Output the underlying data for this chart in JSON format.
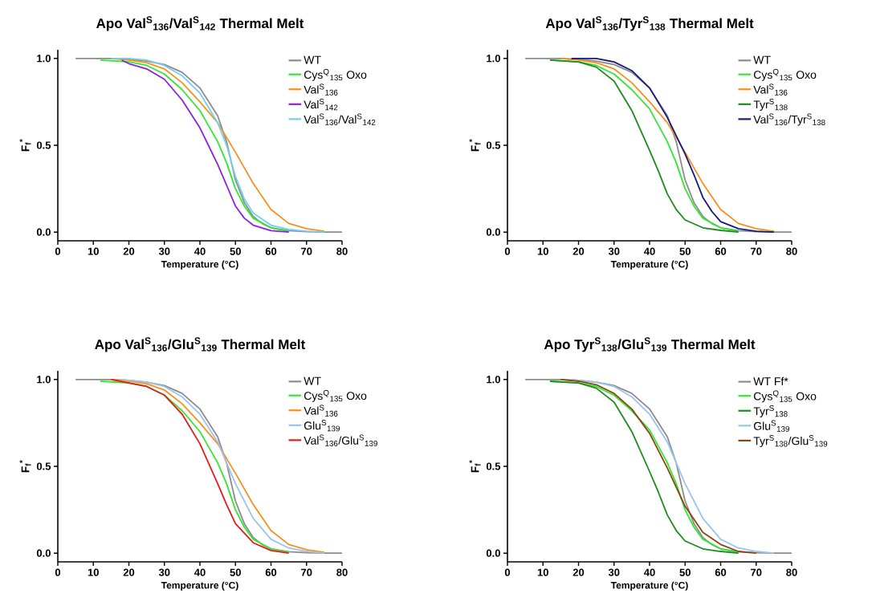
{
  "chart_data": [
    {
      "type": "line",
      "title": "Apo Val$^{S}$$_{136}$/Val$^{S}$$_{142}$ Thermal Melt",
      "xlabel": "Temperature (°C)",
      "ylabel": "F$_{f}$$^{*}$",
      "xlim": [
        0,
        80
      ],
      "ylim": [
        -0.05,
        1.05
      ],
      "xticks": [
        0,
        10,
        20,
        30,
        40,
        50,
        60,
        70,
        80
      ],
      "yticks": [
        {
          "value": 0,
          "label": "0.0"
        },
        {
          "value": 0.5,
          "label": "0.5"
        },
        {
          "value": 1,
          "label": "1.0"
        }
      ],
      "legend": "top right",
      "series": [
        {
          "name": "WT",
          "color": "#8c8c8c",
          "x": [
            5,
            10,
            15,
            20,
            25,
            30,
            35,
            40,
            45,
            47.5,
            50,
            52.5,
            55,
            57.5,
            60,
            65,
            70,
            75,
            80
          ],
          "values": [
            1,
            1,
            1,
            0.995,
            0.985,
            0.965,
            0.92,
            0.83,
            0.67,
            0.52,
            0.3,
            0.17,
            0.09,
            0.05,
            0.025,
            0.008,
            0.003,
            0,
            0
          ]
        },
        {
          "name": "Cys$^{Q}$$_{135}$ Oxo",
          "color": "#33e633",
          "x": [
            12,
            20,
            25,
            30,
            35,
            40,
            45,
            47.5,
            50,
            52.5,
            55,
            60,
            65
          ],
          "values": [
            0.99,
            0.98,
            0.96,
            0.91,
            0.82,
            0.7,
            0.52,
            0.4,
            0.25,
            0.15,
            0.08,
            0.025,
            0.005
          ]
        },
        {
          "name": "Val$^{S}$$_{136}$",
          "color": "#f7901e",
          "x": [
            15,
            20,
            25,
            30,
            35,
            40,
            45,
            50,
            55,
            60,
            65,
            70,
            75
          ],
          "values": [
            1,
            0.99,
            0.975,
            0.94,
            0.86,
            0.75,
            0.63,
            0.46,
            0.28,
            0.13,
            0.05,
            0.02,
            0.005
          ]
        },
        {
          "name": "Val$^{S}$$_{142}$",
          "color": "#8c1fe0",
          "x": [
            18,
            20,
            25,
            30,
            35,
            40,
            45,
            47.5,
            50,
            52.5,
            55,
            60,
            65
          ],
          "values": [
            0.99,
            0.97,
            0.94,
            0.88,
            0.76,
            0.6,
            0.39,
            0.27,
            0.15,
            0.08,
            0.04,
            0.008,
            0
          ]
        },
        {
          "name": "Val$^{S}$$_{136}$/Val$^{S}$$_{142}$",
          "color": "#6ecff0",
          "x": [
            15,
            20,
            25,
            30,
            35,
            40,
            45,
            47.5,
            50,
            52.5,
            55,
            60,
            65,
            70,
            75
          ],
          "values": [
            1,
            1,
            0.99,
            0.96,
            0.9,
            0.8,
            0.63,
            0.5,
            0.32,
            0.19,
            0.11,
            0.04,
            0.015,
            0.005,
            0
          ]
        }
      ]
    },
    {
      "type": "line",
      "title": "Apo Val$^{S}$$_{136}$/Tyr$^{S}$$_{138}$ Thermal Melt",
      "xlabel": "Temperature (°C)",
      "ylabel": "F$_{f}$$^{*}$",
      "xlim": [
        0,
        80
      ],
      "ylim": [
        -0.05,
        1.05
      ],
      "xticks": [
        0,
        10,
        20,
        30,
        40,
        50,
        60,
        70,
        80
      ],
      "yticks": [
        {
          "value": 0,
          "label": "0.0"
        },
        {
          "value": 0.5,
          "label": "0.5"
        },
        {
          "value": 1,
          "label": "1.0"
        }
      ],
      "legend": "top right",
      "series": [
        {
          "name": "WT",
          "color": "#8c8c8c",
          "x": [
            5,
            10,
            15,
            20,
            25,
            30,
            35,
            40,
            45,
            47.5,
            50,
            52.5,
            55,
            57.5,
            60,
            65,
            70,
            75,
            80
          ],
          "values": [
            1,
            1,
            1,
            0.995,
            0.985,
            0.965,
            0.92,
            0.83,
            0.67,
            0.52,
            0.3,
            0.17,
            0.09,
            0.05,
            0.025,
            0.008,
            0.003,
            0,
            0
          ]
        },
        {
          "name": "Cys$^{Q}$$_{135}$ Oxo",
          "color": "#33e633",
          "x": [
            12,
            20,
            25,
            30,
            35,
            40,
            45,
            47.5,
            50,
            52.5,
            55,
            60,
            65
          ],
          "values": [
            0.99,
            0.98,
            0.96,
            0.91,
            0.82,
            0.71,
            0.52,
            0.4,
            0.25,
            0.15,
            0.08,
            0.025,
            0.005
          ]
        },
        {
          "name": "Val$^{S}$$_{136}$",
          "color": "#f7901e",
          "x": [
            15,
            20,
            25,
            30,
            35,
            40,
            45,
            50,
            55,
            60,
            65,
            70,
            75
          ],
          "values": [
            1,
            0.99,
            0.975,
            0.94,
            0.86,
            0.75,
            0.63,
            0.46,
            0.28,
            0.13,
            0.05,
            0.02,
            0.005
          ]
        },
        {
          "name": "Tyr$^{S}$$_{138}$",
          "color": "#1f8a1f",
          "x": [
            12,
            20,
            25,
            30,
            35,
            40,
            42.5,
            45,
            47.5,
            50,
            55,
            60,
            65
          ],
          "values": [
            0.99,
            0.98,
            0.95,
            0.87,
            0.7,
            0.47,
            0.35,
            0.22,
            0.13,
            0.07,
            0.025,
            0.01,
            0
          ]
        },
        {
          "name": "Val$^{S}$$_{136}$/Tyr$^{S}$$_{138}$",
          "color": "#141a80",
          "x": [
            18,
            25,
            30,
            35,
            40,
            45,
            50,
            52.5,
            55,
            57.5,
            60,
            65,
            70,
            75
          ],
          "values": [
            1,
            1,
            0.98,
            0.93,
            0.83,
            0.66,
            0.45,
            0.33,
            0.2,
            0.12,
            0.06,
            0.02,
            0.005,
            0
          ]
        }
      ]
    },
    {
      "type": "line",
      "title": "Apo Val$^{S}$$_{136}$/Glu$^{S}$$_{139}$ Thermal Melt",
      "xlabel": "Temperature (°C)",
      "ylabel": "F$_{f}$$^{*}$",
      "xlim": [
        0,
        80
      ],
      "ylim": [
        -0.05,
        1.05
      ],
      "xticks": [
        0,
        10,
        20,
        30,
        40,
        50,
        60,
        70,
        80
      ],
      "yticks": [
        {
          "value": 0,
          "label": "0.0"
        },
        {
          "value": 0.5,
          "label": "0.5"
        },
        {
          "value": 1,
          "label": "1.0"
        }
      ],
      "legend": "top right",
      "series": [
        {
          "name": "WT",
          "color": "#8c8c8c",
          "x": [
            5,
            10,
            15,
            20,
            25,
            30,
            35,
            40,
            45,
            47.5,
            50,
            52.5,
            55,
            57.5,
            60,
            65,
            70,
            75,
            80
          ],
          "values": [
            1,
            1,
            1,
            0.995,
            0.985,
            0.965,
            0.92,
            0.83,
            0.67,
            0.52,
            0.3,
            0.17,
            0.09,
            0.05,
            0.025,
            0.008,
            0.003,
            0,
            0
          ]
        },
        {
          "name": "Cys$^{Q}$$_{135}$ Oxo",
          "color": "#33e633",
          "x": [
            12,
            20,
            25,
            30,
            35,
            40,
            45,
            47.5,
            50,
            52.5,
            55,
            60,
            65
          ],
          "values": [
            0.99,
            0.98,
            0.96,
            0.91,
            0.82,
            0.7,
            0.52,
            0.4,
            0.25,
            0.15,
            0.08,
            0.025,
            0.005
          ]
        },
        {
          "name": "Val$^{S}$$_{136}$",
          "color": "#f7901e",
          "x": [
            15,
            20,
            25,
            30,
            35,
            40,
            45,
            50,
            55,
            60,
            65,
            70,
            75
          ],
          "values": [
            1,
            0.99,
            0.975,
            0.94,
            0.86,
            0.75,
            0.63,
            0.46,
            0.28,
            0.13,
            0.05,
            0.02,
            0.005
          ]
        },
        {
          "name": "Glu$^{S}$$_{139}$",
          "color": "#9cc3f0",
          "x": [
            18,
            25,
            30,
            35,
            40,
            45,
            50,
            52.5,
            55,
            60,
            65,
            70,
            75
          ],
          "values": [
            1,
            0.985,
            0.96,
            0.9,
            0.8,
            0.64,
            0.4,
            0.3,
            0.2,
            0.08,
            0.03,
            0.01,
            0
          ]
        },
        {
          "name": "Val$^{S}$$_{136}$/Glu$^{S}$$_{139}$",
          "color": "#e61919",
          "x": [
            15,
            20,
            25,
            30,
            35,
            40,
            45,
            47.5,
            50,
            55,
            60,
            65
          ],
          "values": [
            1,
            0.98,
            0.96,
            0.91,
            0.8,
            0.63,
            0.4,
            0.28,
            0.17,
            0.06,
            0.015,
            0
          ]
        }
      ]
    },
    {
      "type": "line",
      "title": "Apo Tyr$^{S}$$_{138}$/Glu$^{S}$$_{139}$ Thermal Melt",
      "xlabel": "Temperature (°C)",
      "ylabel": "F$_{f}$$^{*}$",
      "xlim": [
        0,
        80
      ],
      "ylim": [
        -0.05,
        1.05
      ],
      "xticks": [
        0,
        10,
        20,
        30,
        40,
        50,
        60,
        70,
        80
      ],
      "yticks": [
        {
          "value": 0,
          "label": "0.0"
        },
        {
          "value": 0.5,
          "label": "0.5"
        },
        {
          "value": 1,
          "label": "1.0"
        }
      ],
      "legend": "top right",
      "series": [
        {
          "name": "WT Ff*",
          "color": "#8c8c8c",
          "x": [
            5,
            10,
            15,
            20,
            25,
            30,
            35,
            40,
            45,
            47.5,
            50,
            52.5,
            55,
            57.5,
            60,
            65,
            70,
            75,
            80
          ],
          "values": [
            1,
            1,
            1,
            0.995,
            0.985,
            0.965,
            0.92,
            0.83,
            0.67,
            0.52,
            0.3,
            0.17,
            0.09,
            0.05,
            0.025,
            0.008,
            0.003,
            0,
            0
          ]
        },
        {
          "name": "Cys$^{Q}$$_{135}$ Oxo",
          "color": "#33e633",
          "x": [
            12,
            20,
            25,
            30,
            35,
            40,
            45,
            47.5,
            50,
            52.5,
            55,
            60,
            65
          ],
          "values": [
            0.99,
            0.98,
            0.96,
            0.91,
            0.82,
            0.71,
            0.52,
            0.4,
            0.25,
            0.15,
            0.08,
            0.025,
            0.005
          ]
        },
        {
          "name": "Tyr$^{S}$$_{138}$",
          "color": "#1f8a1f",
          "x": [
            12,
            20,
            25,
            30,
            35,
            40,
            42.5,
            45,
            47.5,
            50,
            55,
            60,
            65
          ],
          "values": [
            0.99,
            0.98,
            0.95,
            0.87,
            0.7,
            0.47,
            0.35,
            0.22,
            0.13,
            0.07,
            0.025,
            0.01,
            0
          ]
        },
        {
          "name": "Glu$^{S}$$_{139}$",
          "color": "#9cc3f0",
          "x": [
            18,
            25,
            30,
            35,
            40,
            45,
            50,
            52.5,
            55,
            60,
            65,
            70,
            75
          ],
          "values": [
            1,
            0.985,
            0.96,
            0.9,
            0.8,
            0.64,
            0.4,
            0.3,
            0.2,
            0.08,
            0.03,
            0.01,
            0
          ]
        },
        {
          "name": "Tyr$^{S}$$_{138}$/Glu$^{S}$$_{139}$",
          "color": "#8b4513",
          "x": [
            15,
            20,
            25,
            30,
            35,
            40,
            45,
            50,
            55,
            60,
            65,
            70
          ],
          "values": [
            1,
            0.99,
            0.97,
            0.92,
            0.83,
            0.69,
            0.49,
            0.27,
            0.12,
            0.05,
            0.01,
            0
          ]
        }
      ]
    }
  ]
}
